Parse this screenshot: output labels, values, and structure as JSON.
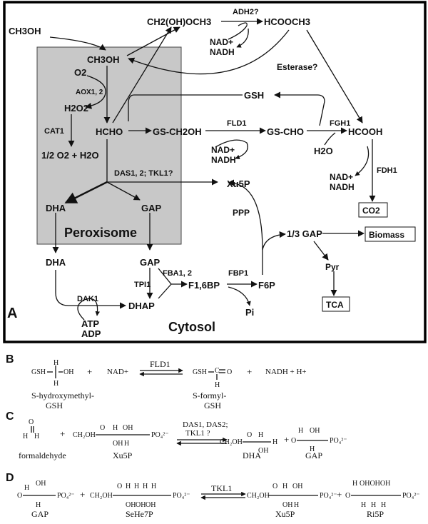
{
  "panelA": {
    "letter": "A",
    "compartments": {
      "peroxisome": "Peroxisome",
      "cytosol": "Cytosol"
    },
    "metabolites": {
      "ch3oh_ext": "CH3OH",
      "ch3oh_perox": "CH3OH",
      "o2": "O2",
      "h2o2": "H2O2",
      "o2_h2o": "1/2 O2 + H2O",
      "hcho": "HCHO",
      "gs_ch2oh": "GS-CH2OH",
      "gs_cho": "GS-CHO",
      "gsh": "GSH",
      "hcooh": "HCOOH",
      "h2o": "H2O",
      "co2": "CO2",
      "ch2ohoch3": "CH2(OH)OCH3",
      "hcooch3": "HCOOCH3",
      "xu5p": "Xu5P",
      "dha_perox": "DHA",
      "gap_perox": "GAP",
      "dha_cyto": "DHA",
      "gap_cyto": "GAP",
      "dhap": "DHAP",
      "f16bp": "F1,6BP",
      "f6p": "F6P",
      "pi": "Pi",
      "third_gap": "1/3 GAP",
      "biomass": "Biomass",
      "pyr": "Pyr",
      "tca": "TCA",
      "atp": "ATP",
      "adp": "ADP"
    },
    "cofactors": {
      "adh2": {
        "nad": "NAD+",
        "nadh": "NADH"
      },
      "fld1": {
        "nad": "NAD+",
        "nadh": "NADH"
      },
      "fdh1": {
        "nad": "NAD+",
        "nadh": "NADH"
      }
    },
    "enzymes": {
      "aox": "AOX1, 2",
      "cat1": "CAT1",
      "das": "DAS1, 2; TKL1?",
      "fld1": "FLD1",
      "fgh1": "FGH1",
      "fdh1": "FDH1",
      "adh2": "ADH2?",
      "esterase": "Esterase?",
      "ppp": "PPP",
      "tpi1": "TPI1",
      "fba": "FBA1, 2",
      "fbp1": "FBP1",
      "dak1": "DAK1"
    }
  },
  "panelB": {
    "letter": "B",
    "enzyme": "FLD1",
    "left_name": [
      "S-hydroxymethyl-",
      "GSH"
    ],
    "right_name": [
      "S-formyl-",
      "GSH"
    ],
    "nad": "NAD+",
    "nadh": "NADH + H+",
    "plus": "+"
  },
  "panelC": {
    "letter": "C",
    "enzyme_line1": "DAS1, DAS2;",
    "enzyme_line2": "TKL1 ?",
    "names": [
      "formaldehyde",
      "Xu5P",
      "DHA",
      "GAP"
    ],
    "plus": "+"
  },
  "panelD": {
    "letter": "D",
    "enzyme": "TKL1",
    "names": [
      "GAP",
      "SeHe7P",
      "Xu5P",
      "Ri5P"
    ],
    "plus": "+"
  }
}
